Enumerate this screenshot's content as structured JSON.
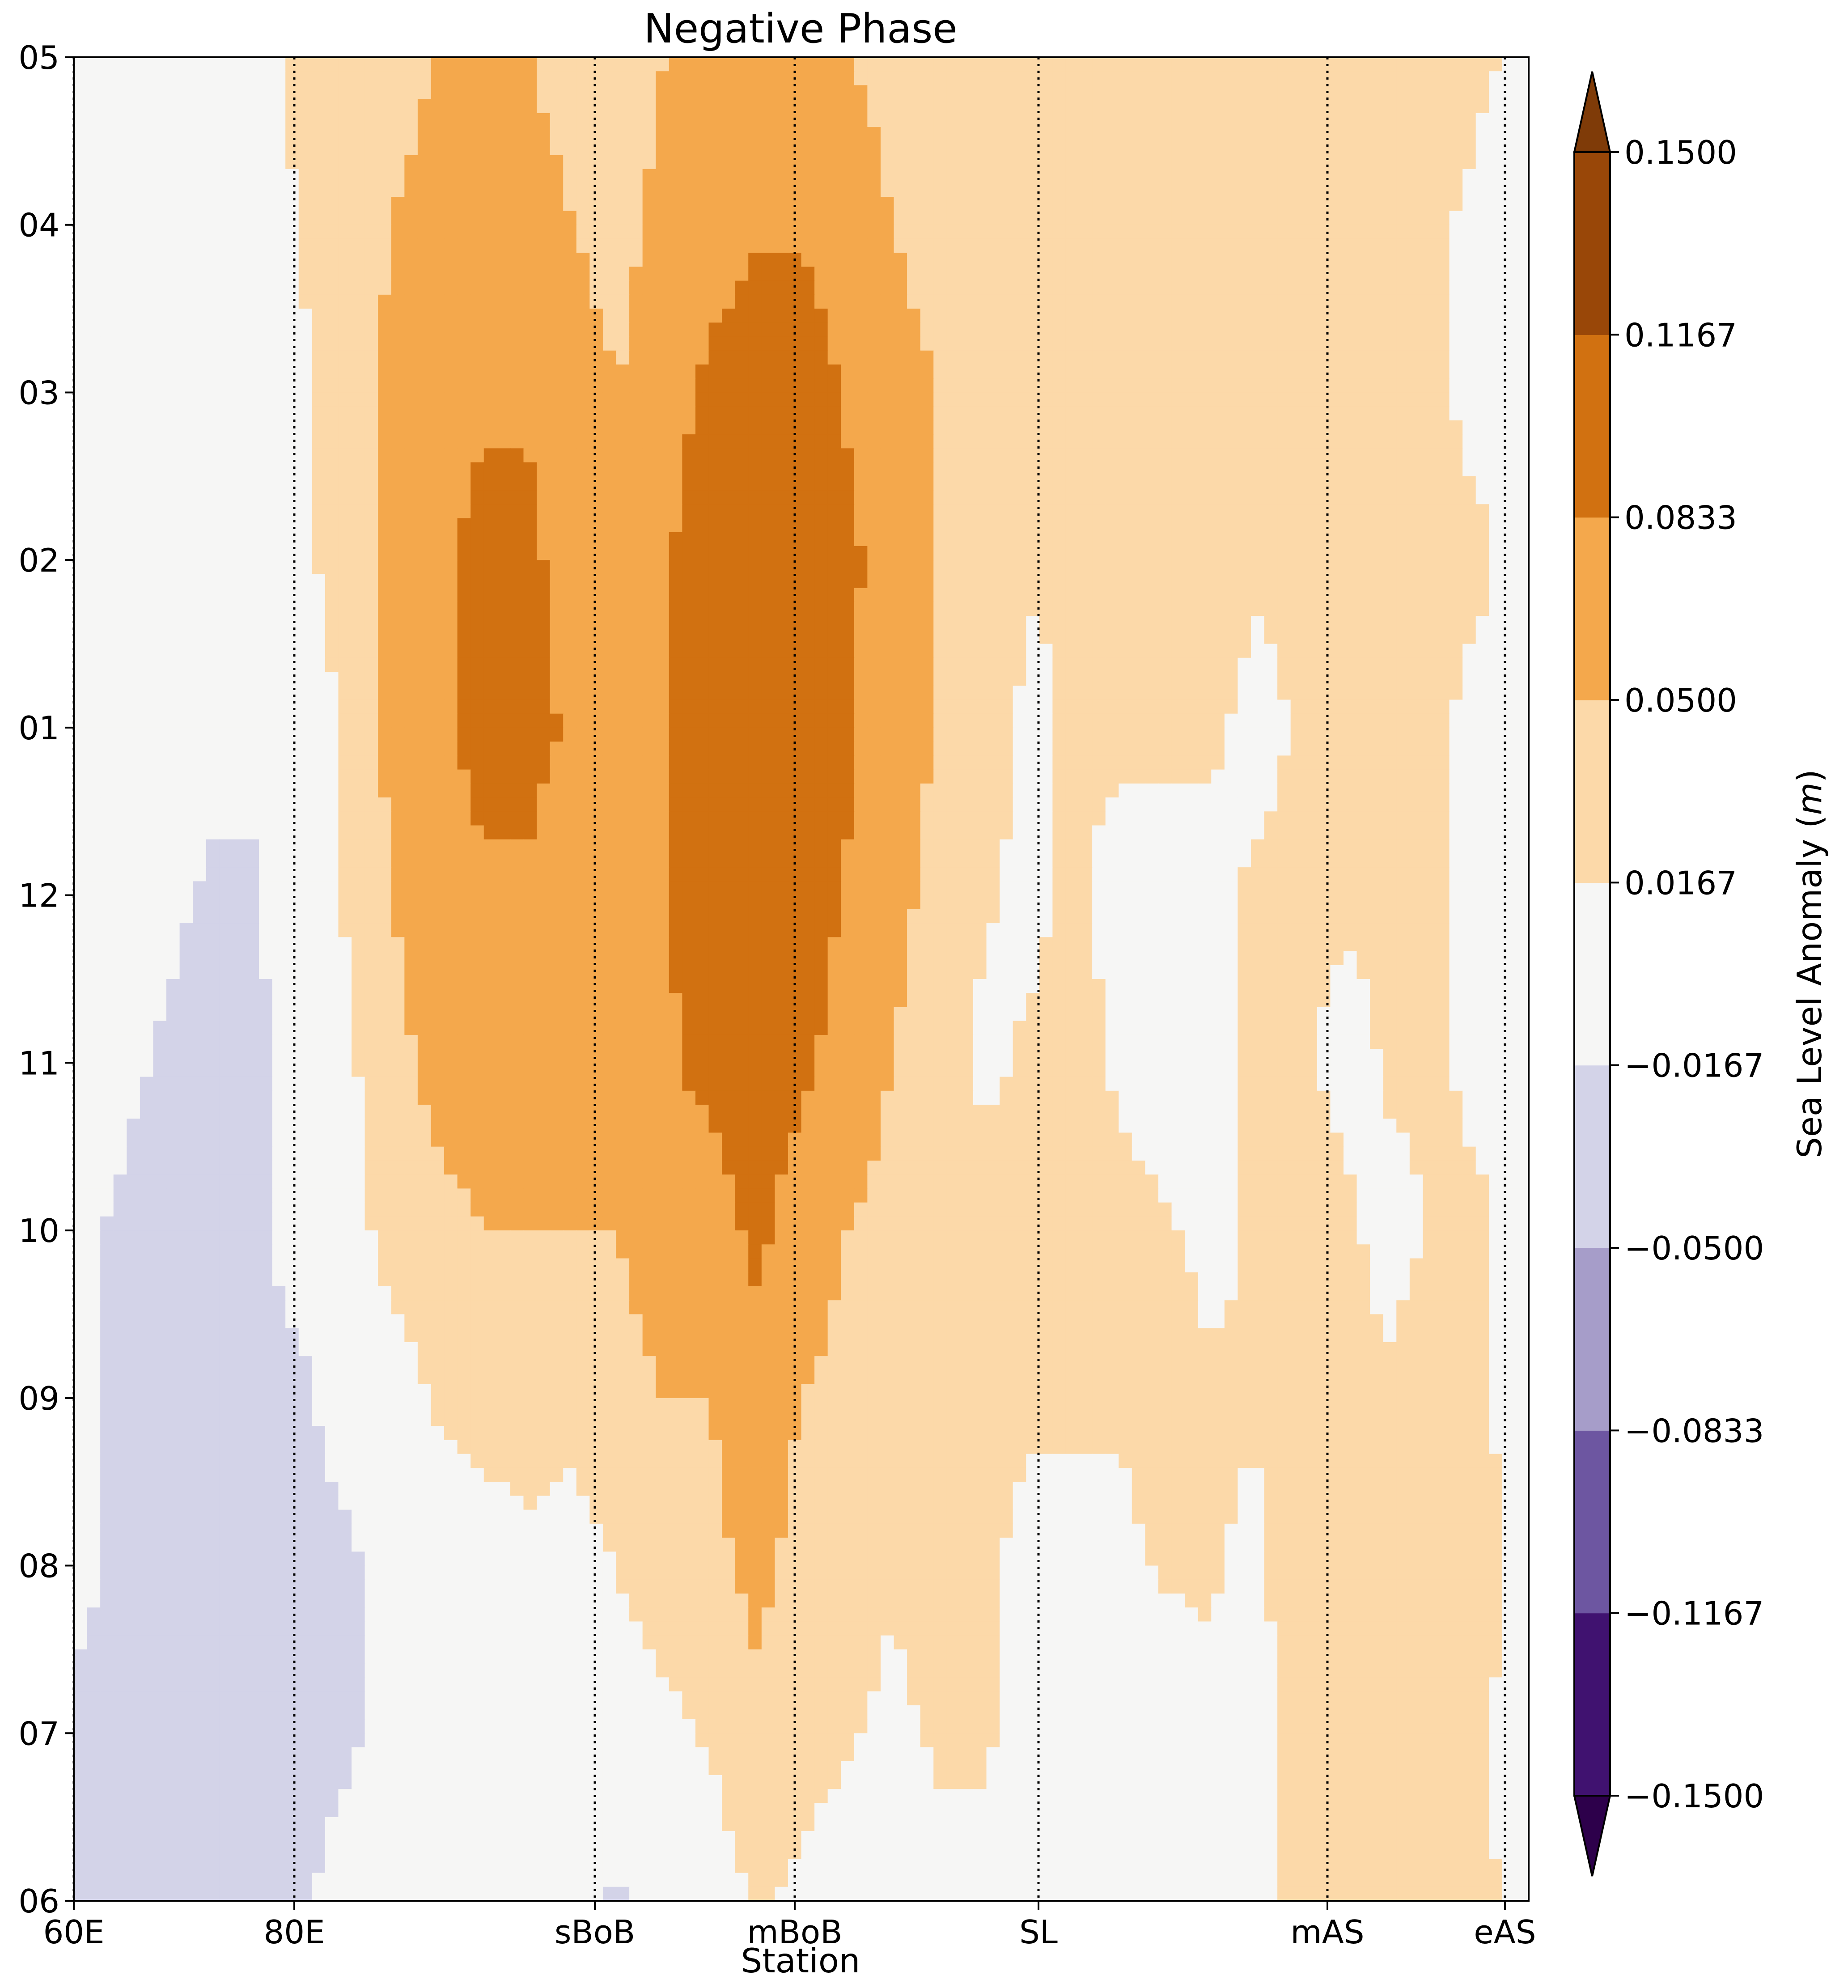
{
  "chart_data": {
    "type": "heatmap",
    "title": "Negative Phase",
    "xlabel": "Station",
    "ylabel": "",
    "x_ticks": [
      "60E",
      "80E",
      "sBoB",
      "mBoB",
      "SL",
      "mAS",
      "eAS"
    ],
    "y_ticks": [
      "06",
      "07",
      "08",
      "09",
      "10",
      "11",
      "12",
      "01",
      "02",
      "03",
      "04",
      "05"
    ],
    "colorbar": {
      "label": "Sea Level Anomaly (m)",
      "label_text": "Sea Level Anomaly (",
      "label_unit": "m",
      "label_close": ")",
      "levels": [
        -0.15,
        -0.1167,
        -0.0833,
        -0.05,
        -0.0167,
        0.0167,
        0.05,
        0.0833,
        0.1167,
        0.15
      ],
      "tick_labels": [
        "−0.1500",
        "−0.1167",
        "−0.0833",
        "−0.0500",
        "−0.0167",
        "0.0167",
        "0.0500",
        "0.0833",
        "0.1167",
        "0.1500"
      ],
      "colors": [
        "#2d004b",
        "#401270",
        "#6d56a1",
        "#a69dc9",
        "#d3d3e8",
        "#f6f6f5",
        "#fcd9a9",
        "#f4a84c",
        "#d17111",
        "#994708",
        "#7f3b08"
      ],
      "extend": "both"
    },
    "field": {
      "values": [
        [
          -0.02,
          -0.03,
          -0.03,
          -0.02,
          -0.02,
          -0.02,
          -0.01,
          0.0,
          0.0,
          0.0,
          0.0,
          -0.01,
          -0.02,
          0.0,
          0.0,
          0.02,
          0.01,
          0.0,
          0.0,
          0.01,
          0.01,
          0.0,
          -0.01,
          0.0,
          0.0,
          0.0,
          0.0,
          0.03,
          0.03,
          0.02,
          0.03,
          0.02,
          0.01
        ],
        [
          -0.02,
          -0.03,
          -0.03,
          -0.03,
          -0.02,
          -0.02,
          -0.02,
          -0.01,
          0.0,
          0.0,
          0.0,
          0.0,
          0.0,
          0.01,
          0.02,
          0.04,
          0.03,
          0.02,
          0.01,
          0.02,
          0.02,
          0.01,
          0.0,
          0.0,
          0.0,
          0.01,
          0.0,
          0.03,
          0.03,
          0.02,
          0.03,
          0.02,
          0.0
        ],
        [
          -0.01,
          -0.02,
          -0.03,
          -0.03,
          -0.02,
          -0.02,
          -0.02,
          -0.01,
          0.0,
          0.0,
          0.01,
          0.0,
          0.02,
          0.03,
          0.04,
          0.06,
          0.04,
          0.03,
          0.02,
          0.03,
          0.02,
          0.01,
          0.01,
          0.01,
          0.02,
          0.02,
          0.01,
          0.04,
          0.03,
          0.02,
          0.03,
          0.03,
          0.0
        ],
        [
          -0.01,
          -0.02,
          -0.03,
          -0.03,
          -0.02,
          -0.02,
          -0.01,
          0.0,
          0.02,
          0.03,
          0.03,
          0.03,
          0.04,
          0.05,
          0.05,
          0.07,
          0.05,
          0.04,
          0.02,
          0.03,
          0.03,
          0.02,
          0.02,
          0.02,
          0.03,
          0.02,
          0.02,
          0.03,
          0.02,
          0.02,
          0.03,
          0.02,
          0.0
        ],
        [
          -0.01,
          -0.02,
          -0.03,
          -0.03,
          -0.02,
          -0.01,
          0.0,
          0.03,
          0.04,
          0.05,
          0.05,
          0.05,
          0.05,
          0.07,
          0.07,
          0.09,
          0.07,
          0.05,
          0.04,
          0.03,
          0.03,
          0.03,
          0.03,
          0.03,
          0.02,
          0.01,
          0.02,
          0.03,
          0.02,
          0.01,
          0.02,
          0.02,
          0.0
        ],
        [
          0.0,
          -0.01,
          -0.02,
          -0.03,
          -0.02,
          -0.01,
          0.01,
          0.04,
          0.06,
          0.07,
          0.07,
          0.07,
          0.06,
          0.08,
          0.09,
          0.1,
          0.09,
          0.07,
          0.05,
          0.03,
          0.01,
          0.02,
          0.03,
          0.01,
          0.0,
          0.01,
          0.02,
          0.02,
          0.01,
          0.02,
          0.02,
          0.01,
          0.0
        ],
        [
          0.0,
          0.0,
          -0.01,
          -0.02,
          -0.02,
          0.0,
          0.02,
          0.05,
          0.07,
          0.08,
          0.08,
          0.07,
          0.06,
          0.08,
          0.1,
          0.1,
          0.1,
          0.08,
          0.06,
          0.04,
          0.02,
          0.01,
          0.02,
          0.01,
          0.01,
          0.01,
          0.02,
          0.02,
          0.02,
          0.02,
          0.02,
          0.01,
          0.0
        ],
        [
          0.0,
          0.0,
          0.0,
          -0.01,
          -0.01,
          0.0,
          0.02,
          0.06,
          0.08,
          0.09,
          0.09,
          0.08,
          0.06,
          0.08,
          0.1,
          0.11,
          0.11,
          0.09,
          0.06,
          0.05,
          0.03,
          0.01,
          0.02,
          0.02,
          0.02,
          0.02,
          0.01,
          0.02,
          0.02,
          0.02,
          0.02,
          0.01,
          0.0
        ],
        [
          0.0,
          0.0,
          0.0,
          0.0,
          0.0,
          0.01,
          0.03,
          0.06,
          0.08,
          0.09,
          0.09,
          0.07,
          0.05,
          0.08,
          0.1,
          0.11,
          0.11,
          0.09,
          0.07,
          0.05,
          0.04,
          0.02,
          0.02,
          0.02,
          0.03,
          0.03,
          0.02,
          0.02,
          0.02,
          0.02,
          0.02,
          0.02,
          0.0
        ],
        [
          0.0,
          0.01,
          0.0,
          0.0,
          0.0,
          0.01,
          0.03,
          0.06,
          0.07,
          0.08,
          0.08,
          0.06,
          0.05,
          0.07,
          0.09,
          0.1,
          0.1,
          0.08,
          0.06,
          0.05,
          0.04,
          0.02,
          0.02,
          0.02,
          0.03,
          0.03,
          0.02,
          0.02,
          0.02,
          0.02,
          0.02,
          0.01,
          0.0
        ],
        [
          0.0,
          0.01,
          0.01,
          0.0,
          0.0,
          0.02,
          0.03,
          0.05,
          0.06,
          0.06,
          0.06,
          0.05,
          0.04,
          0.06,
          0.07,
          0.08,
          0.08,
          0.07,
          0.05,
          0.04,
          0.03,
          0.02,
          0.02,
          0.02,
          0.03,
          0.03,
          0.02,
          0.03,
          0.03,
          0.03,
          0.02,
          0.01,
          0.0
        ],
        [
          0.01,
          0.01,
          0.01,
          0.01,
          0.01,
          0.02,
          0.03,
          0.04,
          0.05,
          0.05,
          0.05,
          0.04,
          0.03,
          0.05,
          0.06,
          0.07,
          0.06,
          0.05,
          0.04,
          0.03,
          0.03,
          0.02,
          0.02,
          0.03,
          0.03,
          0.03,
          0.03,
          0.04,
          0.04,
          0.04,
          0.03,
          0.02,
          0.01
        ]
      ]
    }
  }
}
